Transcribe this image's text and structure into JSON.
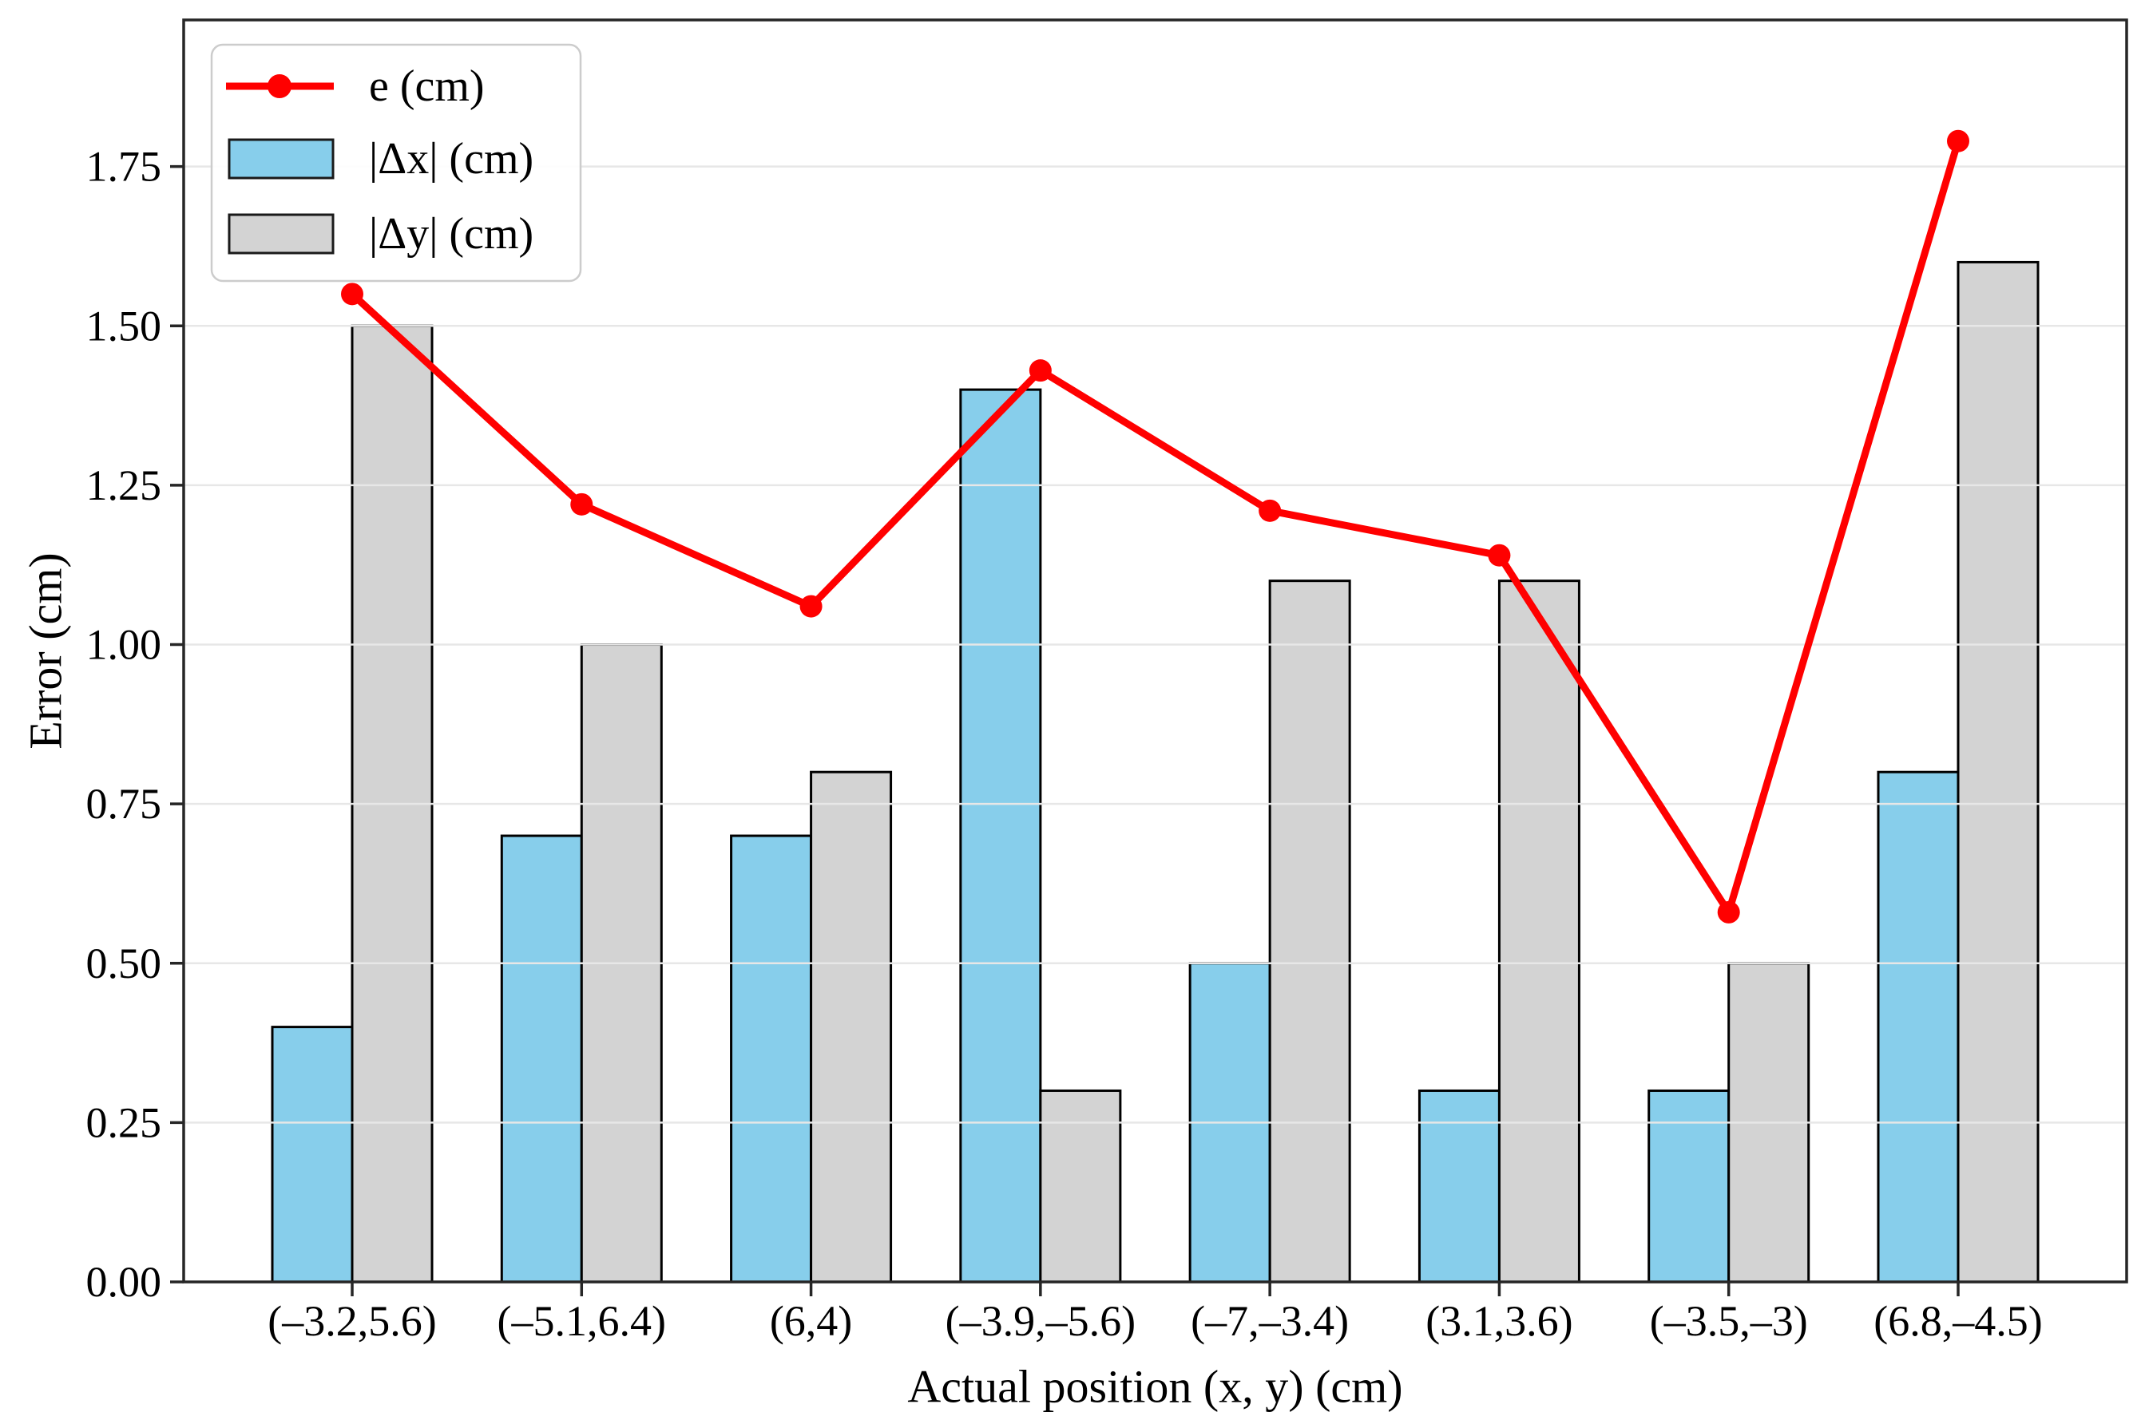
{
  "figure": {
    "background": "#ffffff"
  },
  "chart_data": {
    "type": "bar",
    "subtype": "grouped-bars-with-line-overlay",
    "title": "",
    "xlabel": "Actual position (x, y) (cm)",
    "ylabel": "Error (cm)",
    "categories": [
      "(–3.2,5.6)",
      "(–5.1,6.4)",
      "(6,4)",
      "(–3.9,–5.6)",
      "(–7,–3.4)",
      "(3.1,3.6)",
      "(–3.5,–3)",
      "(6.8,–4.5)"
    ],
    "series": [
      {
        "name": "e (cm)",
        "type": "line",
        "color": "#ff0000",
        "values": [
          1.55,
          1.22,
          1.06,
          1.43,
          1.21,
          1.14,
          0.58,
          1.79
        ]
      },
      {
        "name": "|Δx| (cm)",
        "type": "bar",
        "color": "#87ceeb",
        "values": [
          0.4,
          0.7,
          0.7,
          1.4,
          0.5,
          0.3,
          0.3,
          0.8
        ]
      },
      {
        "name": "|Δy| (cm)",
        "type": "bar",
        "color": "#d3d3d3",
        "values": [
          1.5,
          1.0,
          0.8,
          0.3,
          1.1,
          1.1,
          0.5,
          1.6
        ]
      }
    ],
    "ylim": [
      0,
      1.98
    ],
    "yticks": [
      0,
      0.25,
      0.5,
      0.75,
      1.0,
      1.25,
      1.5,
      1.75
    ],
    "ytick_labels": [
      "0.00",
      "0.25",
      "0.50",
      "0.75",
      "1.00",
      "1.25",
      "1.50",
      "1.75"
    ],
    "grid": true,
    "grid_over_bars": true,
    "legend_position": "upper left",
    "colors": {
      "bar_edge": "#000000",
      "grid": "#e7e7e7",
      "spine": "#262626",
      "legend_border": "#cccccc",
      "legend_background": "#ffffff"
    }
  }
}
